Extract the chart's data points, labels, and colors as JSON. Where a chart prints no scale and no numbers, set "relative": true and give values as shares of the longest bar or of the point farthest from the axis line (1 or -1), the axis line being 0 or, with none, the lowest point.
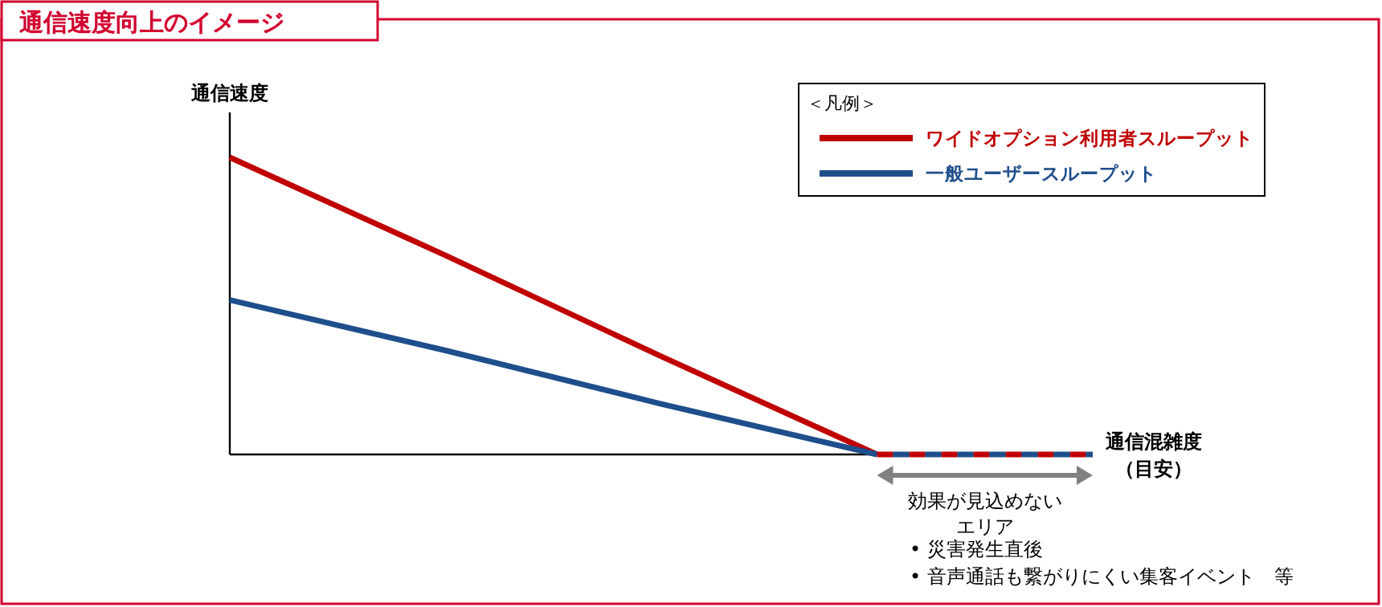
{
  "chart_data": {
    "type": "line",
    "relative": true,
    "title": "通信速度向上のイメージ",
    "ylabel": "通信速度",
    "xlabel": "通信混雑度（目安）",
    "legend_title": "＜凡例＞",
    "legend": "top right",
    "categories": [
      null,
      null,
      null,
      null,
      null
    ],
    "series": [
      {
        "name": "ワイドオプション利用者スループット",
        "color": "#c00000",
        "values": [
          1,
          0.67,
          0.33,
          0,
          null
        ]
      },
      {
        "name": "一般ユーザースループット",
        "color": "#1f4e8c",
        "values": [
          0.52,
          0.35,
          0.17,
          0,
          null
        ]
      },
      {
        "color": "#c00000",
        "line_style": "dashed",
        "values": [
          null,
          null,
          null,
          0,
          0
        ]
      },
      {
        "color": "#1f4e8c",
        "line_style": "dashed",
        "values": [
          null,
          null,
          null,
          0,
          0
        ]
      }
    ],
    "annotations": [
      "効果が見込めない",
      "エリア",
      "•  災害発生直後",
      "•  音声通話も繋がりにくい集客イベント　等"
    ]
  }
}
